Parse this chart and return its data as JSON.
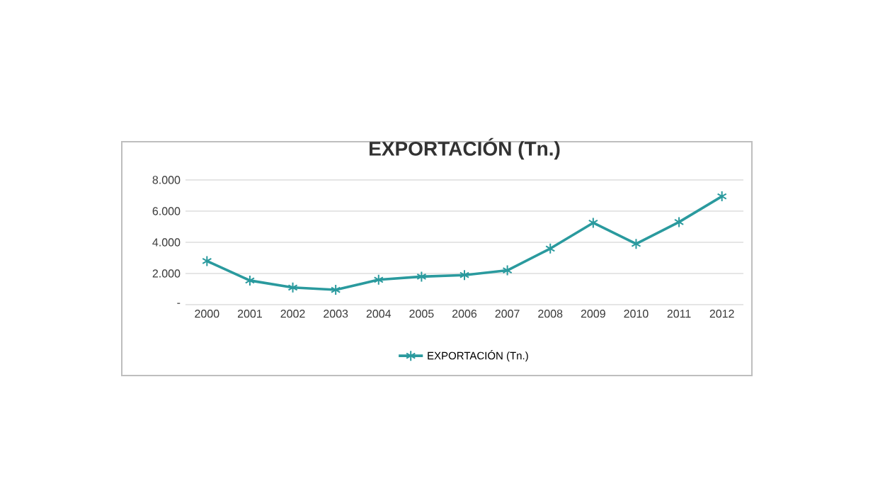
{
  "chart_data": {
    "type": "line",
    "title": "EXPORTACIÓN (Tn.)",
    "categories": [
      "2000",
      "2001",
      "2002",
      "2003",
      "2004",
      "2005",
      "2006",
      "2007",
      "2008",
      "2009",
      "2010",
      "2011",
      "2012"
    ],
    "series": [
      {
        "name": "EXPORTACIÓN (Tn.)",
        "color": "#2a9a9e",
        "values": [
          2800,
          1550,
          1100,
          950,
          1600,
          1800,
          1900,
          2200,
          3600,
          5250,
          3900,
          5300,
          6950
        ]
      }
    ],
    "ylim": [
      0,
      8000
    ],
    "yticks": [
      {
        "value": 0,
        "label": "-"
      },
      {
        "value": 2000,
        "label": "2.000"
      },
      {
        "value": 4000,
        "label": "4.000"
      },
      {
        "value": 6000,
        "label": "6.000"
      },
      {
        "value": 8000,
        "label": "8.000"
      }
    ],
    "grid": "y",
    "legend": "bottom",
    "marker": "cross",
    "line_style": "solid"
  }
}
